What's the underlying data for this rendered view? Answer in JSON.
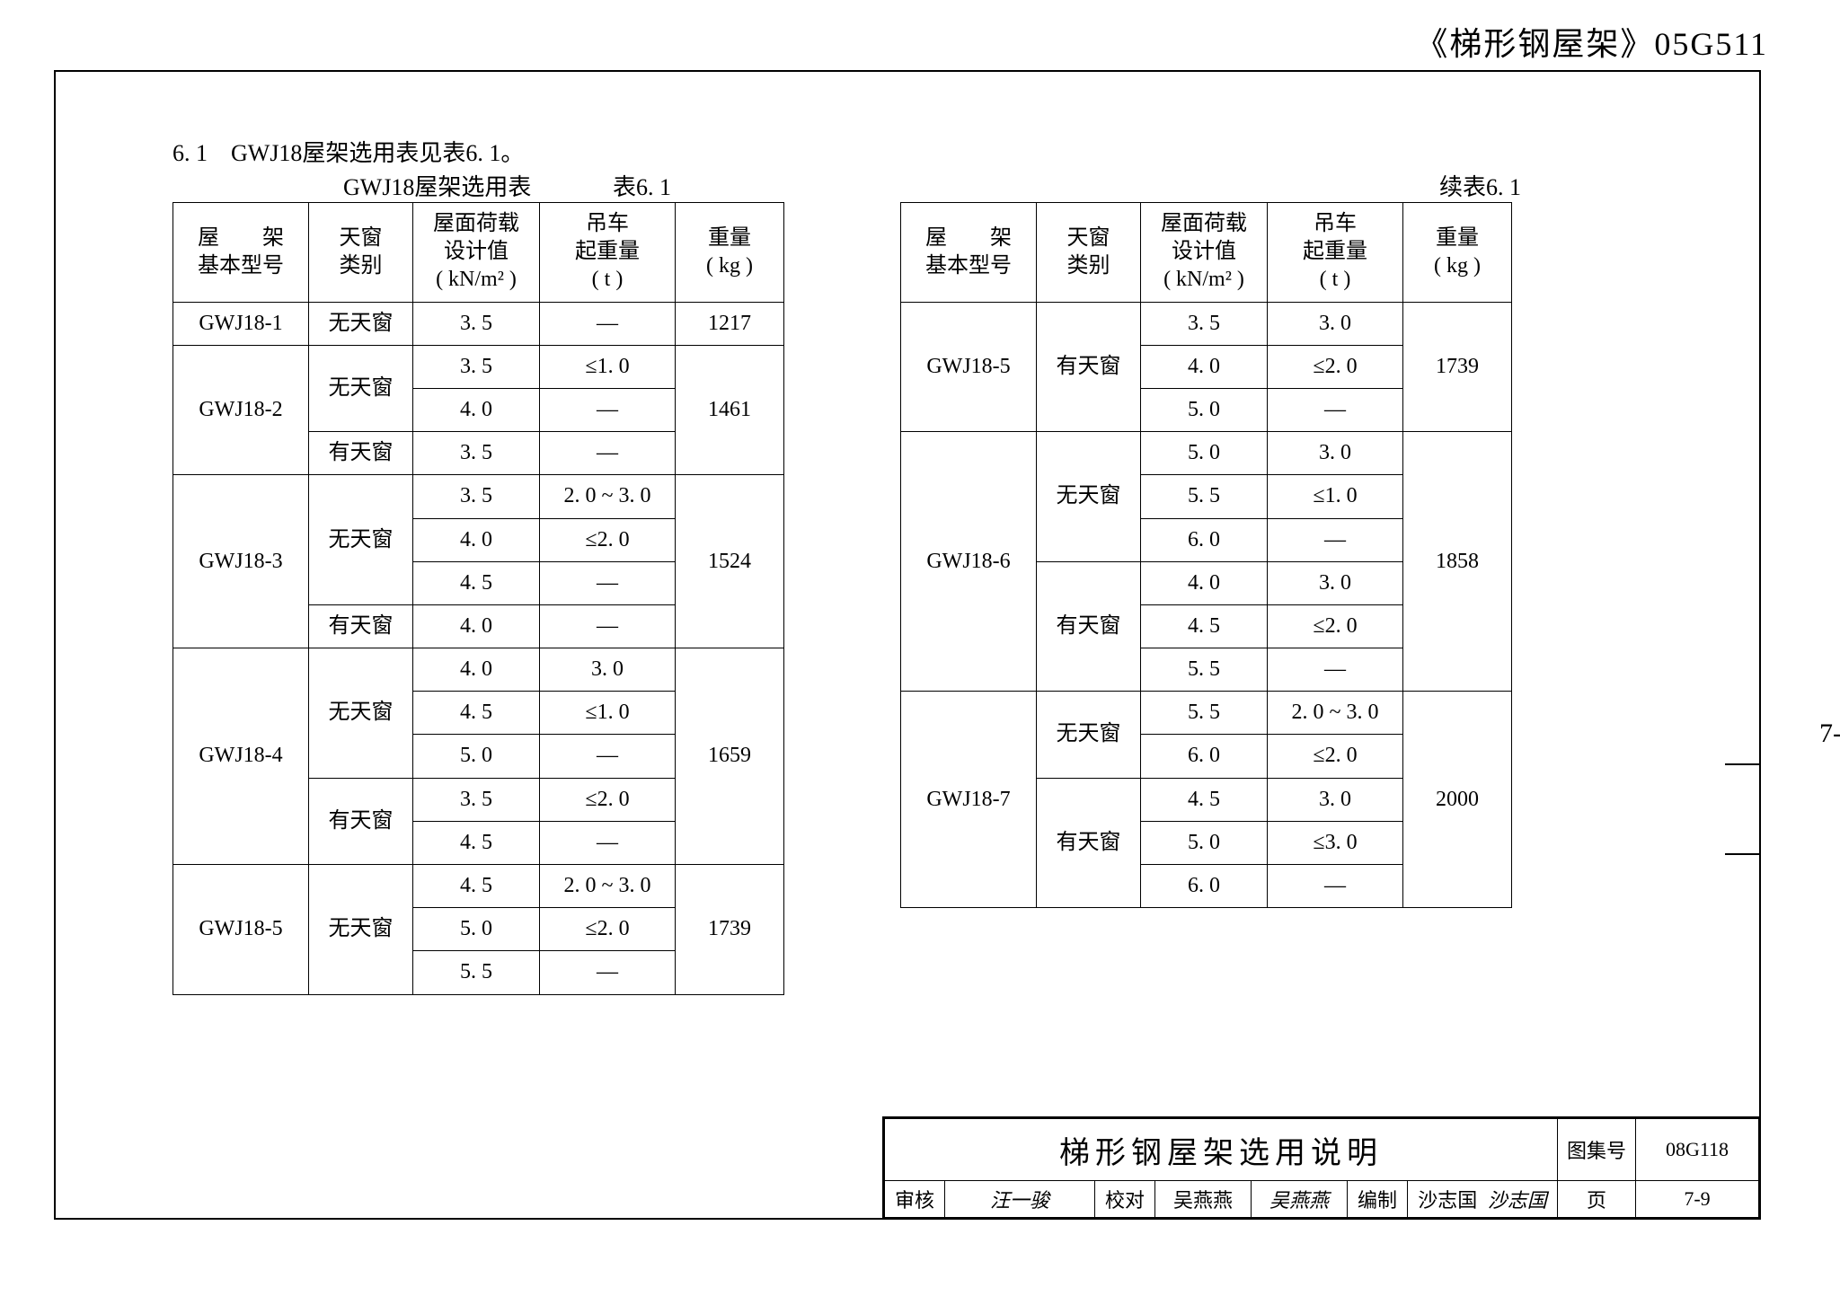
{
  "doc_title": "《梯形钢屋架》05G511",
  "section_head": "6. 1　GWJ18屋架选用表见表6. 1。",
  "caption_left": "GWJ18屋架选用表",
  "caption_left_num": "表6. 1",
  "caption_right": "续表6. 1",
  "headers": {
    "model": "屋　　架\n基本型号",
    "sky": "天窗\n类别",
    "load": "屋面荷载\n设计值\n( kN/m² )",
    "crane": "吊车\n起重量\n( t )",
    "weight": "重量\n( kg )"
  },
  "left_rows": [
    {
      "model": "GWJ18-1",
      "model_span": 1,
      "sky": "无天窗",
      "sky_span": 1,
      "load": "3. 5",
      "crane": "—",
      "wt": "1217",
      "wt_span": 1
    },
    {
      "model": "GWJ18-2",
      "model_span": 3,
      "sky": "无天窗",
      "sky_span": 2,
      "load": "3. 5",
      "crane": "≤1. 0",
      "wt": "1461",
      "wt_span": 3
    },
    {
      "load": "4. 0",
      "crane": "—"
    },
    {
      "sky": "有天窗",
      "sky_span": 1,
      "load": "3. 5",
      "crane": "—"
    },
    {
      "model": "GWJ18-3",
      "model_span": 4,
      "sky": "无天窗",
      "sky_span": 3,
      "load": "3. 5",
      "crane": "2. 0 ~ 3. 0",
      "wt": "1524",
      "wt_span": 4
    },
    {
      "load": "4. 0",
      "crane": "≤2. 0"
    },
    {
      "load": "4. 5",
      "crane": "—"
    },
    {
      "sky": "有天窗",
      "sky_span": 1,
      "load": "4. 0",
      "crane": "—"
    },
    {
      "model": "GWJ18-4",
      "model_span": 5,
      "sky": "无天窗",
      "sky_span": 3,
      "load": "4. 0",
      "crane": "3. 0",
      "wt": "1659",
      "wt_span": 5
    },
    {
      "load": "4. 5",
      "crane": "≤1. 0"
    },
    {
      "load": "5. 0",
      "crane": "—"
    },
    {
      "sky": "有天窗",
      "sky_span": 2,
      "load": "3. 5",
      "crane": "≤2. 0"
    },
    {
      "load": "4. 5",
      "crane": "—"
    },
    {
      "model": "GWJ18-5",
      "model_span": 3,
      "sky": "无天窗",
      "sky_span": 3,
      "load": "4. 5",
      "crane": "2. 0 ~ 3. 0",
      "wt": "1739",
      "wt_span": 3
    },
    {
      "load": "5. 0",
      "crane": "≤2. 0"
    },
    {
      "load": "5. 5",
      "crane": "—"
    }
  ],
  "right_rows": [
    {
      "model": "GWJ18-5",
      "model_span": 3,
      "sky": "有天窗",
      "sky_span": 3,
      "load": "3. 5",
      "crane": "3. 0",
      "wt": "1739",
      "wt_span": 3
    },
    {
      "load": "4. 0",
      "crane": "≤2. 0"
    },
    {
      "load": "5. 0",
      "crane": "—"
    },
    {
      "model": "GWJ18-6",
      "model_span": 6,
      "sky": "无天窗",
      "sky_span": 3,
      "load": "5. 0",
      "crane": "3. 0",
      "wt": "1858",
      "wt_span": 6
    },
    {
      "load": "5. 5",
      "crane": "≤1. 0"
    },
    {
      "load": "6. 0",
      "crane": "—"
    },
    {
      "sky": "有天窗",
      "sky_span": 3,
      "load": "4. 0",
      "crane": "3. 0"
    },
    {
      "load": "4. 5",
      "crane": "≤2. 0"
    },
    {
      "load": "5. 5",
      "crane": "—"
    },
    {
      "model": "GWJ18-7",
      "model_span": 5,
      "sky": "无天窗",
      "sky_span": 2,
      "load": "5. 5",
      "crane": "2. 0 ~ 3. 0",
      "wt": "2000",
      "wt_span": 5
    },
    {
      "load": "6. 0",
      "crane": "≤2. 0"
    },
    {
      "sky": "有天窗",
      "sky_span": 3,
      "load": "4. 5",
      "crane": "3. 0"
    },
    {
      "load": "5. 0",
      "crane": "≤3. 0"
    },
    {
      "load": "6. 0",
      "crane": "—"
    }
  ],
  "title_block": {
    "main": "梯形钢屋架选用说明",
    "tujihao_label": "图集号",
    "tujihao": "08G118",
    "shenhe_label": "审核",
    "shenhe_val": "汪一骏",
    "jiaodui_label": "校对",
    "jiaodui_val": "吴燕燕",
    "jiaodui_sig": "吴燕燕",
    "bianzhi_label": "编制",
    "bianzhi_val": "沙志国",
    "bianzhi_sig": "沙志国",
    "ye_label": "页",
    "ye_val": "7-9"
  },
  "side_tab": "7-"
}
